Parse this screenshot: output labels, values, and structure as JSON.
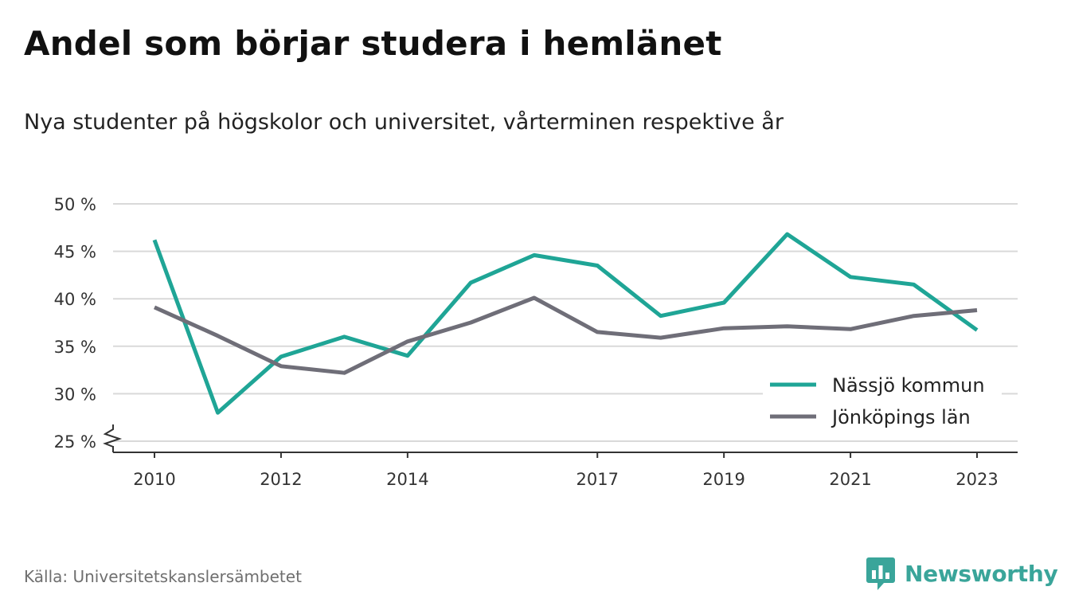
{
  "title": "Andel som börjar studera i hemlänet",
  "subtitle": "Nya studenter på högskolor och universitet, vårterminen respektive år",
  "source": "Källa: Universitetskanslersämbetet",
  "brand": {
    "name": "Newsworthy",
    "icon": "newsworthy-logo-icon",
    "color": "#3aa59a"
  },
  "chart_data": {
    "type": "line",
    "title": "Andel som börjar studera i hemlänet",
    "subtitle": "Nya studenter på högskolor och universitet, vårterminen respektive år",
    "x": [
      2010,
      2011,
      2012,
      2013,
      2014,
      2015,
      2016,
      2017,
      2018,
      2019,
      2020,
      2021,
      2022,
      2023
    ],
    "x_ticks": [
      "2010",
      "2012",
      "2014",
      "2017",
      "2019",
      "2021",
      "2023"
    ],
    "y_ticks": [
      "25 %",
      "30 %",
      "35 %",
      "40 %",
      "45 %",
      "50 %"
    ],
    "ylim": [
      25,
      50
    ],
    "y_axis_break": true,
    "grid": true,
    "legend_position": "bottom-right",
    "series": [
      {
        "name": "Nässjö kommun",
        "color": "#1fa596",
        "values": [
          46.2,
          28.0,
          33.9,
          36.0,
          34.0,
          41.7,
          44.6,
          43.5,
          38.2,
          39.6,
          46.8,
          42.3,
          41.5,
          36.7
        ]
      },
      {
        "name": "Jönköpings län",
        "color": "#6f6e78",
        "values": [
          39.1,
          36.1,
          32.9,
          32.2,
          35.5,
          37.5,
          40.1,
          36.5,
          35.9,
          36.9,
          37.1,
          36.8,
          38.2,
          38.8
        ]
      }
    ]
  }
}
